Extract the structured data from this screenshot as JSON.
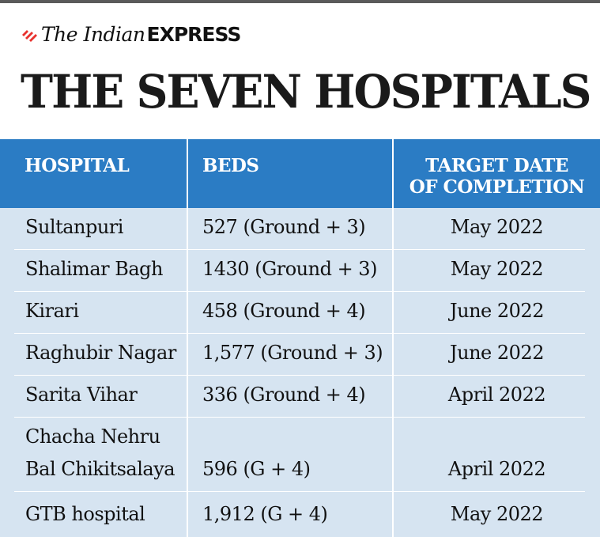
{
  "brand": {
    "the_indian": "The Indian",
    "express": "EXPRESS",
    "accent_color": "#e8312d"
  },
  "headline": "THE SEVEN HOSPITALS",
  "colors": {
    "header_bg": "#2b7cc4",
    "row_bg": "#d6e4f1",
    "text": "#111111"
  },
  "chart_data": {
    "type": "table",
    "columns": [
      "HOSPITAL",
      "BEDS",
      "TARGET DATE OF COMPLETION"
    ],
    "header_lines": {
      "hospital": "HOSPITAL",
      "beds": "BEDS",
      "target_line1": "TARGET DATE",
      "target_line2": "OF COMPLETION"
    },
    "rows": [
      {
        "hospital": [
          "Sultanpuri"
        ],
        "beds": "527 (Ground + 3)",
        "target": "May 2022"
      },
      {
        "hospital": [
          "Shalimar Bagh"
        ],
        "beds": "1430 (Ground + 3)",
        "target": "May 2022"
      },
      {
        "hospital": [
          "Kirari"
        ],
        "beds": "458 (Ground + 4)",
        "target": "June 2022"
      },
      {
        "hospital": [
          "Raghubir Nagar"
        ],
        "beds": "1,577 (Ground + 3)",
        "target": "June 2022"
      },
      {
        "hospital": [
          "Sarita Vihar"
        ],
        "beds": "336 (Ground + 4)",
        "target": "April 2022"
      },
      {
        "hospital": [
          "Chacha Nehru",
          "Bal Chikitsalaya"
        ],
        "beds": "596 (G + 4)",
        "target": "April 2022"
      },
      {
        "hospital": [
          "GTB hospital"
        ],
        "beds": "1,912 (G + 4)",
        "target": "May 2022"
      }
    ]
  }
}
